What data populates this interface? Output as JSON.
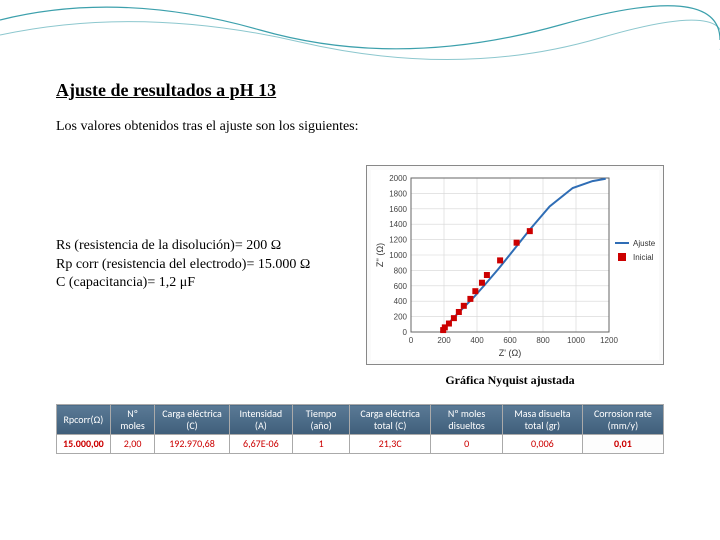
{
  "slide": {
    "title": "Ajuste de resultados a pH 13",
    "subtitle": "Los valores obtenidos tras el ajuste son los siguientes:"
  },
  "decoration": {
    "wave_color_1": "#1a8f9e",
    "wave_color_2": "#1a8f9e"
  },
  "params": {
    "line1": "Rs (resistencia de la disolución)= 200 Ω",
    "line2": "Rp corr (resistencia del electrodo)= 15.000 Ω",
    "line3": "C (capacitancia)= 1,2 μF"
  },
  "chart": {
    "type": "scatter+line",
    "xlabel": "Z' (Ω)",
    "ylabel": "Z'' (Ω)",
    "xlim": [
      0,
      1200
    ],
    "ylim": [
      0,
      2000
    ],
    "xtick_step": 200,
    "ytick_step": 200,
    "grid_color": "#d5d5d5",
    "axis_color": "#666666",
    "background_color": "#ffffff",
    "label_fontsize": 9,
    "tick_fontsize": 8,
    "line_series": {
      "name": "Ajuste",
      "color": "#2f6db5",
      "width": 2,
      "points": [
        [
          180,
          0
        ],
        [
          200,
          50
        ],
        [
          230,
          120
        ],
        [
          270,
          210
        ],
        [
          320,
          320
        ],
        [
          380,
          450
        ],
        [
          450,
          620
        ],
        [
          530,
          820
        ],
        [
          620,
          1060
        ],
        [
          720,
          1330
        ],
        [
          840,
          1630
        ],
        [
          980,
          1870
        ],
        [
          1100,
          1960
        ],
        [
          1180,
          1990
        ]
      ]
    },
    "scatter_series": {
      "name": "Inicial",
      "color": "#cc0000",
      "marker": "square",
      "size": 6,
      "points": [
        [
          195,
          25
        ],
        [
          205,
          60
        ],
        [
          230,
          110
        ],
        [
          260,
          180
        ],
        [
          290,
          260
        ],
        [
          320,
          340
        ],
        [
          360,
          430
        ],
        [
          390,
          530
        ],
        [
          430,
          640
        ],
        [
          460,
          740
        ],
        [
          540,
          930
        ],
        [
          640,
          1160
        ],
        [
          720,
          1310
        ]
      ]
    },
    "legend": [
      {
        "label": "Ajuste",
        "type": "line",
        "color": "#2f6db5"
      },
      {
        "label": "Inicial",
        "type": "square",
        "color": "#cc0000"
      }
    ]
  },
  "caption": "Gráfica Nyquist ajustada",
  "table": {
    "columns": [
      "Rpcorr(Ω)",
      "Nº moles",
      "Carga eléctrica (C)",
      "Intensidad (A)",
      "Tiempo (año)",
      "Carga eléctrica total (C)",
      "Nº moles disueltos",
      "Masa disuelta total (gr)",
      "Corrosion rate (mm/y)"
    ],
    "rows": [
      [
        "15.000,00",
        "2,00",
        "192.970,68",
        "6,67E-06",
        "1",
        "21,3C",
        "0",
        "0,006",
        "0,01"
      ]
    ],
    "header_bg": "#4a6d88",
    "header_color": "#ffffff",
    "cell_color": "#cc0000",
    "border_color": "#aaaaaa"
  }
}
